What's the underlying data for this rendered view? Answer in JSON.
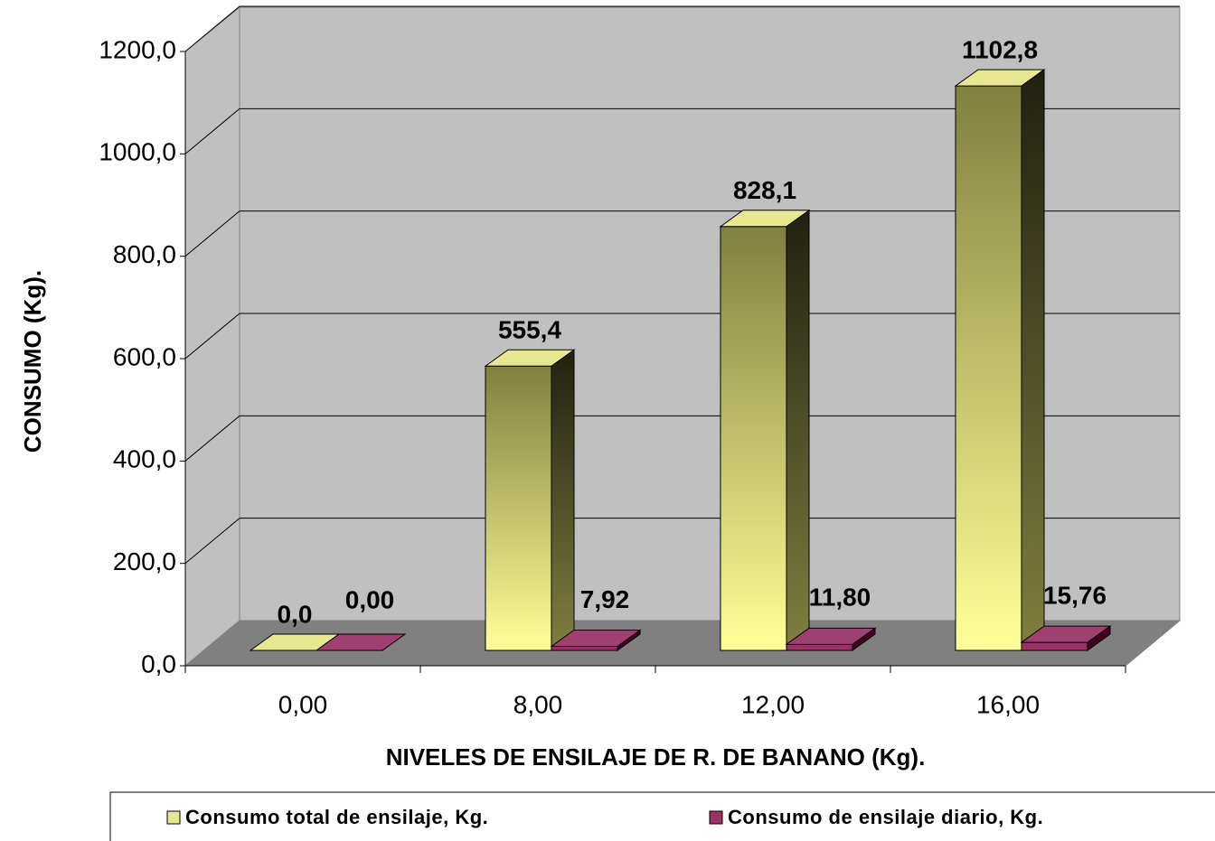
{
  "chart_data": {
    "type": "bar3d",
    "categories": [
      "0,00",
      "8,00",
      "12,00",
      "16,00"
    ],
    "series": [
      {
        "name": "Consumo total de ensilaje, Kg.",
        "color": "#808040",
        "values": [
          0,
          555.4,
          828.1,
          1102.8
        ],
        "value_labels": [
          "0,0",
          "555,4",
          "828,1",
          "1102,8"
        ]
      },
      {
        "name": "Consumo de ensilaje diario, Kg.",
        "color": "#993366",
        "values": [
          0,
          7.92,
          11.8,
          15.76
        ],
        "value_labels": [
          "0,00",
          "7,92",
          "11,80",
          "15,76"
        ]
      }
    ],
    "ylim": [
      0,
      1200
    ],
    "yticks": [
      {
        "value": 0,
        "label": "0,0"
      },
      {
        "value": 200,
        "label": "200,0"
      },
      {
        "value": 400,
        "label": "400,0"
      },
      {
        "value": 600,
        "label": "600,0"
      },
      {
        "value": 800,
        "label": "800,0"
      },
      {
        "value": 1000,
        "label": "1000,0"
      },
      {
        "value": 1200,
        "label": "1200,0"
      }
    ],
    "y_label": "CONSUMO (Kg).",
    "x_label": "NIVELES DE ENSILAJE DE R. DE BANANO (Kg).",
    "grid": true,
    "legend": "bottom"
  }
}
